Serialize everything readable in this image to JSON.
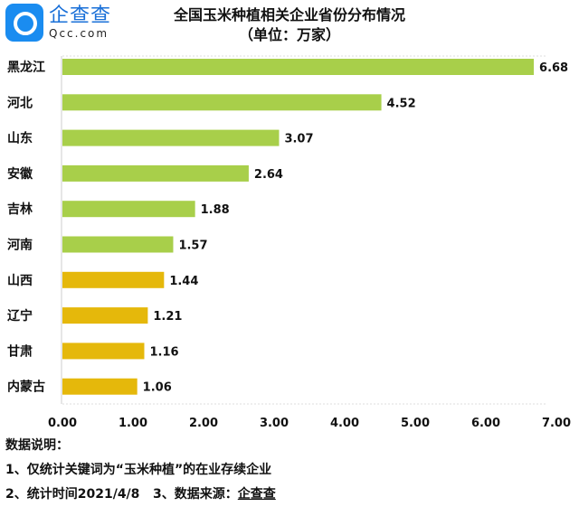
{
  "logo": {
    "cn": "企查查",
    "en": "Qcc.com"
  },
  "chart_data": {
    "type": "bar",
    "orientation": "horizontal",
    "title": "全国玉米种植相关企业省份分布情况",
    "subtitle": "（单位：万家）",
    "categories": [
      "黑龙江",
      "河北",
      "山东",
      "安徽",
      "吉林",
      "河南",
      "山西",
      "辽宁",
      "甘肃",
      "内蒙古"
    ],
    "values": [
      6.68,
      4.52,
      3.07,
      2.64,
      1.88,
      1.57,
      1.44,
      1.21,
      1.16,
      1.06
    ],
    "value_labels": [
      "6.68",
      "4.52",
      "3.07",
      "2.64",
      "1.88",
      "1.57",
      "1.44",
      "1.21",
      "1.16",
      "1.06"
    ],
    "bar_colors": [
      "#a8cf4a",
      "#a8cf4a",
      "#a8cf4a",
      "#a8cf4a",
      "#a8cf4a",
      "#a8cf4a",
      "#e5b80b",
      "#e5b80b",
      "#e5b80b",
      "#e5b80b"
    ],
    "xlim": [
      0,
      7
    ],
    "xticks": [
      "0.00",
      "1.00",
      "2.00",
      "3.00",
      "4.00",
      "5.00",
      "6.00",
      "7.00"
    ]
  },
  "notes": {
    "heading": "数据说明：",
    "line1": "1、仅统计关键词为“玉米种植”的在业存续企业",
    "line2_prefix": "2、统计时间2021/4/8   3、数据来源：",
    "source": "企查查"
  }
}
